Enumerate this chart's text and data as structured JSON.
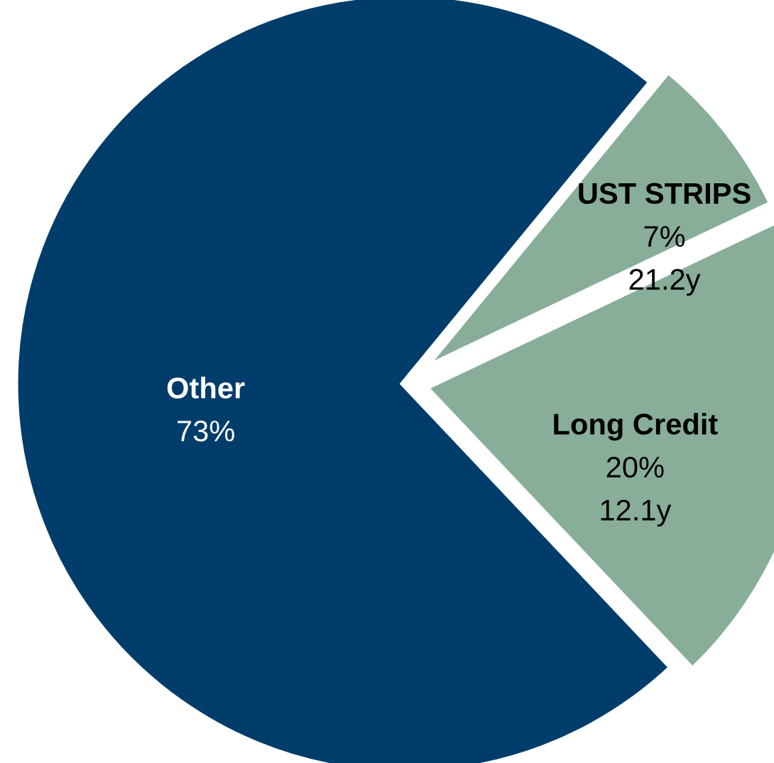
{
  "chart_data": {
    "type": "pie",
    "categories": [
      "Other",
      "Long Credit",
      "UST STRIPS"
    ],
    "values": [
      73,
      20,
      7
    ],
    "colors": [
      "#003d6b",
      "#88ae9a",
      "#88ae9a"
    ],
    "value_labels": [
      "73%",
      "20%",
      "7%"
    ],
    "annotations": [
      {
        "text": "12.1y",
        "x": "Long Credit"
      },
      {
        "text": "21.2y",
        "x": "UST STRIPS"
      }
    ]
  }
}
